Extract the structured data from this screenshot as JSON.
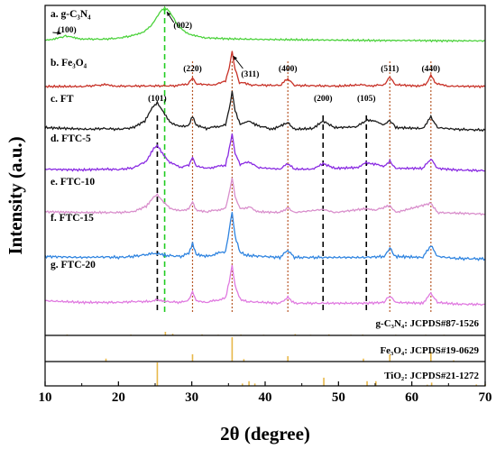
{
  "chart_data": {
    "type": "line",
    "xlabel": "2θ (degree)",
    "ylabel": "Intensity (a.u.)",
    "xlim": [
      10,
      70
    ],
    "xticks": [
      "10",
      "20",
      "30",
      "40",
      "50",
      "60",
      "70"
    ],
    "series": [
      {
        "name": "a. g-C₃N₄",
        "color": "#4cd23c",
        "points": [
          [
            10,
            0.04
          ],
          [
            11,
            0.06
          ],
          [
            12,
            0.12
          ],
          [
            12.8,
            0.16
          ],
          [
            13.5,
            0.14
          ],
          [
            14.5,
            0.09
          ],
          [
            16,
            0.07
          ],
          [
            18,
            0.07
          ],
          [
            20,
            0.1
          ],
          [
            22,
            0.18
          ],
          [
            23.5,
            0.3
          ],
          [
            24.5,
            0.48
          ],
          [
            25.2,
            0.72
          ],
          [
            25.8,
            0.92
          ],
          [
            26.3,
            1.0
          ],
          [
            26.8,
            0.94
          ],
          [
            27.4,
            0.74
          ],
          [
            28.2,
            0.46
          ],
          [
            29.2,
            0.27
          ],
          [
            30.5,
            0.16
          ],
          [
            32,
            0.11
          ],
          [
            35,
            0.08
          ],
          [
            40,
            0.06
          ],
          [
            45,
            0.05
          ],
          [
            50,
            0.04
          ],
          [
            55,
            0.03
          ],
          [
            60,
            0.03
          ],
          [
            65,
            0.02
          ],
          [
            70,
            0.02
          ]
        ],
        "peak_labels": [
          {
            "text": "(100)",
            "x": 13
          },
          {
            "text": "(002)",
            "x": 27.3
          }
        ]
      },
      {
        "name": "b. Fe₃O₄",
        "color": "#c83228",
        "points": [
          [
            10,
            0.05
          ],
          [
            15,
            0.05
          ],
          [
            18.3,
            0.1
          ],
          [
            20,
            0.06
          ],
          [
            28,
            0.07
          ],
          [
            29.5,
            0.12
          ],
          [
            30.1,
            0.28
          ],
          [
            30.7,
            0.12
          ],
          [
            33,
            0.09
          ],
          [
            34.6,
            0.2
          ],
          [
            35.1,
            0.55
          ],
          [
            35.5,
            1.0
          ],
          [
            35.9,
            0.52
          ],
          [
            36.5,
            0.15
          ],
          [
            37.1,
            0.16
          ],
          [
            38,
            0.09
          ],
          [
            42,
            0.08
          ],
          [
            43.1,
            0.26
          ],
          [
            44,
            0.08
          ],
          [
            50,
            0.06
          ],
          [
            53.4,
            0.1
          ],
          [
            54,
            0.06
          ],
          [
            56.2,
            0.1
          ],
          [
            57,
            0.3
          ],
          [
            57.8,
            0.1
          ],
          [
            61,
            0.06
          ],
          [
            62,
            0.12
          ],
          [
            62.6,
            0.36
          ],
          [
            63.3,
            0.12
          ],
          [
            65,
            0.06
          ],
          [
            70,
            0.05
          ]
        ],
        "peak_labels": [
          {
            "text": "(220)",
            "x": 30.1
          },
          {
            "text": "(311)",
            "x": 35.5
          },
          {
            "text": "(400)",
            "x": 43.1
          },
          {
            "text": "(511)",
            "x": 57.0
          },
          {
            "text": "(440)",
            "x": 62.6
          }
        ]
      },
      {
        "name": "c. FT",
        "color": "#1a1a1a",
        "points": [
          [
            10,
            0.14
          ],
          [
            13,
            0.12
          ],
          [
            16,
            0.1
          ],
          [
            18,
            0.12
          ],
          [
            20,
            0.1
          ],
          [
            22,
            0.14
          ],
          [
            23.6,
            0.3
          ],
          [
            24.6,
            0.62
          ],
          [
            25.3,
            0.74
          ],
          [
            26,
            0.55
          ],
          [
            27,
            0.28
          ],
          [
            28.5,
            0.16
          ],
          [
            29.6,
            0.2
          ],
          [
            30.1,
            0.42
          ],
          [
            30.6,
            0.2
          ],
          [
            32,
            0.12
          ],
          [
            34.6,
            0.2
          ],
          [
            35.1,
            0.6
          ],
          [
            35.5,
            1.0
          ],
          [
            35.9,
            0.55
          ],
          [
            36.6,
            0.22
          ],
          [
            37.8,
            0.3
          ],
          [
            38.8,
            0.2
          ],
          [
            41,
            0.1
          ],
          [
            43.1,
            0.26
          ],
          [
            44,
            0.1
          ],
          [
            46.5,
            0.12
          ],
          [
            47.9,
            0.3
          ],
          [
            49.5,
            0.14
          ],
          [
            52.5,
            0.16
          ],
          [
            53.8,
            0.32
          ],
          [
            55,
            0.3
          ],
          [
            56.2,
            0.2
          ],
          [
            57,
            0.32
          ],
          [
            57.8,
            0.14
          ],
          [
            61.5,
            0.12
          ],
          [
            62.6,
            0.4
          ],
          [
            63.5,
            0.14
          ],
          [
            66,
            0.1
          ],
          [
            70,
            0.08
          ]
        ],
        "peak_labels": [
          {
            "text": "(101)",
            "x": 25.3
          },
          {
            "text": "(200)",
            "x": 47.9
          },
          {
            "text": "(105)",
            "x": 53.8
          }
        ]
      },
      {
        "name": "d. FTC-5",
        "color": "#8a2be2",
        "points": [
          [
            10,
            0.1
          ],
          [
            15,
            0.08
          ],
          [
            18,
            0.1
          ],
          [
            20,
            0.09
          ],
          [
            22,
            0.13
          ],
          [
            23.8,
            0.3
          ],
          [
            24.8,
            0.62
          ],
          [
            25.3,
            0.7
          ],
          [
            26,
            0.5
          ],
          [
            27,
            0.26
          ],
          [
            28.5,
            0.15
          ],
          [
            29.6,
            0.2
          ],
          [
            30.1,
            0.4
          ],
          [
            30.6,
            0.18
          ],
          [
            32,
            0.12
          ],
          [
            34.6,
            0.2
          ],
          [
            35.1,
            0.6
          ],
          [
            35.5,
            1.0
          ],
          [
            35.9,
            0.5
          ],
          [
            36.6,
            0.22
          ],
          [
            37.9,
            0.28
          ],
          [
            39,
            0.14
          ],
          [
            42,
            0.1
          ],
          [
            43.1,
            0.24
          ],
          [
            44,
            0.1
          ],
          [
            46.5,
            0.1
          ],
          [
            47.9,
            0.24
          ],
          [
            49.5,
            0.12
          ],
          [
            52.5,
            0.14
          ],
          [
            53.8,
            0.26
          ],
          [
            55,
            0.22
          ],
          [
            56.3,
            0.18
          ],
          [
            57,
            0.3
          ],
          [
            57.8,
            0.12
          ],
          [
            61.5,
            0.12
          ],
          [
            62.6,
            0.36
          ],
          [
            63.5,
            0.12
          ],
          [
            66,
            0.08
          ],
          [
            70,
            0.06
          ]
        ]
      },
      {
        "name": "e. FTC-10",
        "color": "#d98fcc",
        "points": [
          [
            10,
            0.12
          ],
          [
            15,
            0.1
          ],
          [
            18,
            0.1
          ],
          [
            20,
            0.1
          ],
          [
            22,
            0.12
          ],
          [
            23.8,
            0.26
          ],
          [
            24.8,
            0.5
          ],
          [
            25.3,
            0.56
          ],
          [
            26,
            0.4
          ],
          [
            27,
            0.22
          ],
          [
            28.5,
            0.14
          ],
          [
            29.6,
            0.2
          ],
          [
            30.1,
            0.38
          ],
          [
            30.6,
            0.16
          ],
          [
            32,
            0.12
          ],
          [
            34.6,
            0.2
          ],
          [
            35.1,
            0.6
          ],
          [
            35.5,
            1.0
          ],
          [
            35.9,
            0.5
          ],
          [
            36.6,
            0.2
          ],
          [
            37.9,
            0.24
          ],
          [
            39,
            0.12
          ],
          [
            42,
            0.1
          ],
          [
            43.1,
            0.22
          ],
          [
            44,
            0.1
          ],
          [
            47.9,
            0.18
          ],
          [
            49.5,
            0.1
          ],
          [
            53.8,
            0.2
          ],
          [
            55,
            0.16
          ],
          [
            57,
            0.28
          ],
          [
            57.8,
            0.1
          ],
          [
            62.6,
            0.34
          ],
          [
            63.5,
            0.1
          ],
          [
            70,
            0.06
          ]
        ]
      },
      {
        "name": "f. FTC-15",
        "color": "#2f84e0",
        "points": [
          [
            10,
            0.1
          ],
          [
            15,
            0.08
          ],
          [
            18,
            0.09
          ],
          [
            20,
            0.08
          ],
          [
            22,
            0.1
          ],
          [
            24,
            0.14
          ],
          [
            25.3,
            0.16
          ],
          [
            26.5,
            0.12
          ],
          [
            28.5,
            0.1
          ],
          [
            29.6,
            0.16
          ],
          [
            30.1,
            0.36
          ],
          [
            30.6,
            0.14
          ],
          [
            32,
            0.1
          ],
          [
            34.6,
            0.2
          ],
          [
            35.1,
            0.6
          ],
          [
            35.5,
            1.0
          ],
          [
            35.9,
            0.5
          ],
          [
            36.6,
            0.18
          ],
          [
            37.5,
            0.12
          ],
          [
            42,
            0.08
          ],
          [
            43.1,
            0.22
          ],
          [
            44,
            0.08
          ],
          [
            48,
            0.08
          ],
          [
            53.5,
            0.08
          ],
          [
            56.2,
            0.1
          ],
          [
            57,
            0.26
          ],
          [
            57.8,
            0.1
          ],
          [
            61.5,
            0.08
          ],
          [
            62.6,
            0.32
          ],
          [
            63.5,
            0.1
          ],
          [
            66,
            0.06
          ],
          [
            70,
            0.05
          ]
        ]
      },
      {
        "name": "g. FTC-20",
        "color": "#e07ae0",
        "points": [
          [
            10,
            0.14
          ],
          [
            15,
            0.1
          ],
          [
            18,
            0.1
          ],
          [
            20,
            0.1
          ],
          [
            22,
            0.12
          ],
          [
            24,
            0.12
          ],
          [
            25.3,
            0.16
          ],
          [
            26.5,
            0.12
          ],
          [
            28.5,
            0.1
          ],
          [
            29.6,
            0.16
          ],
          [
            30.1,
            0.36
          ],
          [
            30.6,
            0.14
          ],
          [
            32,
            0.1
          ],
          [
            34.6,
            0.2
          ],
          [
            35.1,
            0.6
          ],
          [
            35.5,
            1.0
          ],
          [
            35.9,
            0.5
          ],
          [
            36.6,
            0.18
          ],
          [
            37.5,
            0.12
          ],
          [
            42,
            0.08
          ],
          [
            43.1,
            0.22
          ],
          [
            44,
            0.08
          ],
          [
            48,
            0.08
          ],
          [
            53.5,
            0.08
          ],
          [
            56.2,
            0.1
          ],
          [
            57,
            0.26
          ],
          [
            57.8,
            0.1
          ],
          [
            61.5,
            0.08
          ],
          [
            62.6,
            0.32
          ],
          [
            63.5,
            0.1
          ],
          [
            66,
            0.06
          ],
          [
            70,
            0.05
          ]
        ]
      }
    ],
    "reference_lines": [
      {
        "x": 25.3,
        "color": "#000000"
      },
      {
        "x": 26.3,
        "color": "#22cc22"
      },
      {
        "x": 30.1,
        "color": "#b85a2a"
      },
      {
        "x": 35.5,
        "color": "#b85a2a"
      },
      {
        "x": 43.1,
        "color": "#b85a2a"
      },
      {
        "x": 47.9,
        "color": "#000000"
      },
      {
        "x": 53.8,
        "color": "#000000"
      },
      {
        "x": 57.0,
        "color": "#b85a2a"
      },
      {
        "x": 62.6,
        "color": "#b85a2a"
      }
    ],
    "reference_patterns": [
      {
        "label": "g-C₃N₄: JCPDS#87-1526",
        "color": "#e8b84a",
        "sticks": [
          [
            13.0,
            0.05
          ],
          [
            21.7,
            0.05
          ],
          [
            26.4,
            0.22
          ],
          [
            27.4,
            0.1
          ],
          [
            31.4,
            0.06
          ],
          [
            33.6,
            0.04
          ],
          [
            36.7,
            0.05
          ],
          [
            39.8,
            0.04
          ],
          [
            44.1,
            0.08
          ],
          [
            46.2,
            0.04
          ],
          [
            48.7,
            0.06
          ],
          [
            51.7,
            0.04
          ],
          [
            53.3,
            0.05
          ],
          [
            55.5,
            0.03
          ],
          [
            57.8,
            0.04
          ],
          [
            61.9,
            0.04
          ],
          [
            64.4,
            0.04
          ],
          [
            68.2,
            0.03
          ]
        ]
      },
      {
        "label": "Fe₃O₄: JCPDS#19-0629",
        "color": "#e8b84a",
        "sticks": [
          [
            18.3,
            0.12
          ],
          [
            30.1,
            0.3
          ],
          [
            35.5,
            1.0
          ],
          [
            37.1,
            0.1
          ],
          [
            43.1,
            0.22
          ],
          [
            53.4,
            0.12
          ],
          [
            57.0,
            0.3
          ],
          [
            62.6,
            0.4
          ],
          [
            65.7,
            0.05
          ]
        ]
      },
      {
        "label": "TiO₂: JCPDS#21-1272",
        "color": "#e8b84a",
        "sticks": [
          [
            25.3,
            1.0
          ],
          [
            36.9,
            0.1
          ],
          [
            37.8,
            0.2
          ],
          [
            38.6,
            0.1
          ],
          [
            48.0,
            0.35
          ],
          [
            53.9,
            0.2
          ],
          [
            55.1,
            0.2
          ],
          [
            62.1,
            0.05
          ],
          [
            62.7,
            0.14
          ],
          [
            68.8,
            0.06
          ],
          [
            70.0,
            0.07
          ]
        ]
      }
    ],
    "grid": false,
    "legend": "none"
  }
}
